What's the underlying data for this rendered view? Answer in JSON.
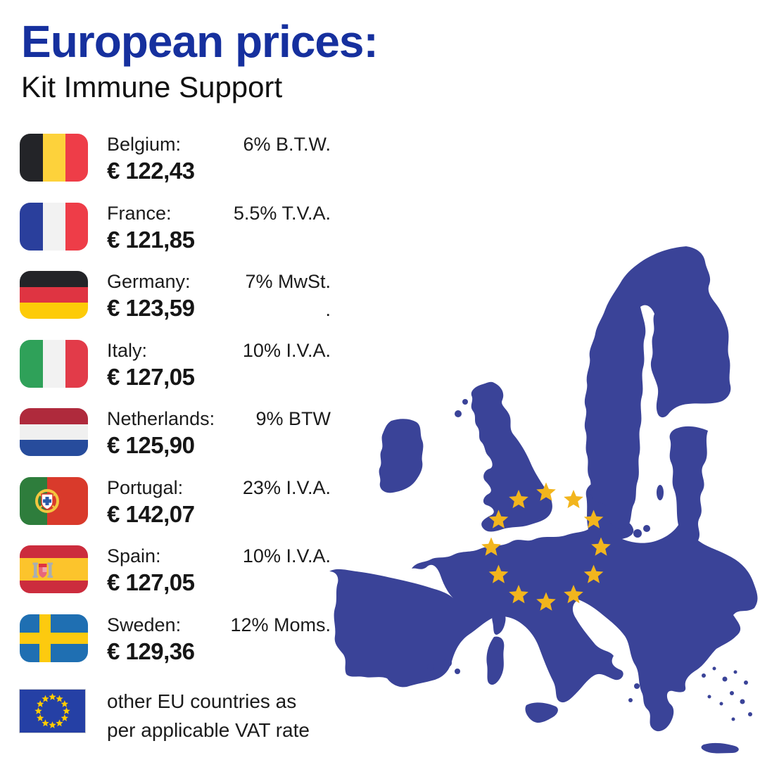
{
  "title": "European prices:",
  "subtitle": "Kit Immune Support",
  "colors": {
    "title_blue": "#16309E",
    "text_black": "#1B1B1B",
    "map_blue": "#3A4398",
    "star_gold": "#F2B51D",
    "eu_flag_blue": "#2540A5",
    "eu_flag_star_gold": "#FFCC00"
  },
  "rows": [
    {
      "country": "Belgium",
      "label": "Belgium:",
      "vat": "6% B.T.W.",
      "price": "€ 122,43",
      "flag": "be",
      "note": ""
    },
    {
      "country": "France",
      "label": "France:",
      "vat": "5.5% T.V.A.",
      "price": "€ 121,85",
      "flag": "fr",
      "note": ""
    },
    {
      "country": "Germany",
      "label": "Germany:",
      "vat": "7% MwSt.",
      "price": "€ 123,59",
      "flag": "de",
      "note": "."
    },
    {
      "country": "Italy",
      "label": "Italy:",
      "vat": "10% I.V.A.",
      "price": "€ 127,05",
      "flag": "it",
      "note": ""
    },
    {
      "country": "Netherlands",
      "label": "Netherlands:",
      "vat": "9% BTW",
      "price": "€ 125,90",
      "flag": "nl",
      "note": ""
    },
    {
      "country": "Portugal",
      "label": "Portugal:",
      "vat": "23% I.V.A.",
      "price": "€ 142,07",
      "flag": "pt",
      "note": ""
    },
    {
      "country": "Spain",
      "label": "Spain:",
      "vat": "10% I.V.A.",
      "price": "€ 127,05",
      "flag": "es",
      "note": ""
    },
    {
      "country": "Sweden",
      "label": "Sweden:",
      "vat": "12% Moms.",
      "price": "€ 129,36",
      "flag": "se",
      "note": ""
    }
  ],
  "footer": {
    "line1": "other EU countries as",
    "line2": "per applicable VAT rate"
  }
}
